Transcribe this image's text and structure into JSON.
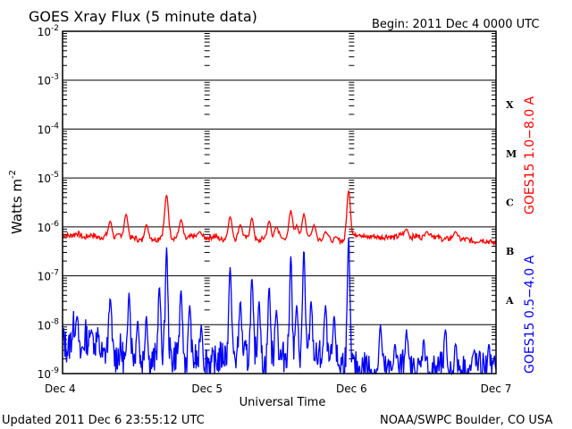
{
  "header": {
    "title": "GOES Xray Flux (5 minute data)",
    "begin": "Begin:  2011 Dec 4 0000 UTC"
  },
  "footer": {
    "updated": "Updated 2011 Dec  6 23:55:12 UTC",
    "credit": "NOAA/SWPC Boulder, CO USA"
  },
  "colors": {
    "long": "#ff0000",
    "short": "#0000ff",
    "axis": "#000000",
    "background": "#ffffff"
  },
  "chart_data": {
    "type": "line",
    "xlabel": "Universal Time",
    "ylabel": "Watts m",
    "ylabel_sup": "-2",
    "y_scale": "log",
    "ylim": [
      1e-09,
      0.01
    ],
    "y_ticks": [
      {
        "mant": "10",
        "exp": "-9",
        "value": 1e-09
      },
      {
        "mant": "10",
        "exp": "-8",
        "value": 1e-08
      },
      {
        "mant": "10",
        "exp": "-7",
        "value": 1e-07
      },
      {
        "mant": "10",
        "exp": "-6",
        "value": 1e-06
      },
      {
        "mant": "10",
        "exp": "-5",
        "value": 1e-05
      },
      {
        "mant": "10",
        "exp": "-4",
        "value": 0.0001
      },
      {
        "mant": "10",
        "exp": "-3",
        "value": 0.001
      },
      {
        "mant": "10",
        "exp": "-2",
        "value": 0.01
      }
    ],
    "x_ticks": [
      "Dec 4",
      "Dec 5",
      "Dec 6",
      "Dec 7"
    ],
    "flare_classes": [
      {
        "label": "X",
        "value": 0.000316
      },
      {
        "label": "M",
        "value": 3.16e-05
      },
      {
        "label": "C",
        "value": 3.16e-06
      },
      {
        "label": "B",
        "value": 3.16e-07
      },
      {
        "label": "A",
        "value": 3.16e-08
      }
    ],
    "grid": "horizontal at each decade",
    "series": [
      {
        "name": "GOES15 1.0−8.0 A",
        "color": "#ff0000",
        "points": [
          [
            0,
            7e-07
          ],
          [
            0.05,
            6.5e-07
          ],
          [
            0.1,
            7.5e-07
          ],
          [
            0.15,
            6e-07
          ],
          [
            0.2,
            7e-07
          ],
          [
            0.25,
            6e-07
          ],
          [
            0.3,
            6.5e-07
          ],
          [
            0.35,
            5.5e-07
          ],
          [
            0.4,
            7e-07
          ],
          [
            0.45,
            5.5e-07
          ],
          [
            0.5,
            6e-07
          ],
          [
            0.55,
            5e-07
          ],
          [
            0.6,
            6e-07
          ],
          [
            0.65,
            5.5e-07
          ],
          [
            0.7,
            7e-07
          ],
          [
            0.75,
            6e-07
          ],
          [
            0.8,
            6e-07
          ],
          [
            0.85,
            5.5e-07
          ],
          [
            0.9,
            6.5e-07
          ],
          [
            0.95,
            6e-07
          ],
          [
            1,
            6e-07
          ],
          [
            1.05,
            6.5e-07
          ],
          [
            1.1,
            5.5e-07
          ],
          [
            1.15,
            6e-07
          ],
          [
            1.2,
            5.5e-07
          ],
          [
            1.25,
            6e-07
          ],
          [
            1.3,
            5.5e-07
          ],
          [
            1.35,
            5e-07
          ],
          [
            1.4,
            6e-07
          ],
          [
            1.45,
            5.5e-07
          ],
          [
            1.5,
            6.5e-07
          ],
          [
            1.6,
            5.5e-07
          ],
          [
            1.7,
            6e-07
          ],
          [
            1.8,
            5.5e-07
          ],
          [
            1.9,
            5.5e-07
          ],
          [
            1.95,
            5e-07
          ],
          [
            2,
            6e-07
          ],
          [
            2.05,
            7.5e-07
          ],
          [
            2.1,
            6e-07
          ],
          [
            2.15,
            6.5e-07
          ],
          [
            2.2,
            6e-07
          ],
          [
            2.25,
            6.5e-07
          ],
          [
            2.3,
            6e-07
          ],
          [
            2.35,
            7e-07
          ],
          [
            2.4,
            6e-07
          ],
          [
            2.45,
            6.5e-07
          ],
          [
            2.5,
            6e-07
          ],
          [
            2.55,
            7e-07
          ],
          [
            2.6,
            6e-07
          ],
          [
            2.65,
            5.5e-07
          ],
          [
            2.7,
            6e-07
          ],
          [
            2.75,
            5.5e-07
          ],
          [
            2.8,
            5.5e-07
          ],
          [
            2.85,
            5e-07
          ],
          [
            2.9,
            5.5e-07
          ],
          [
            2.95,
            5e-07
          ],
          [
            3,
            4.5e-07
          ]
        ],
        "peaks": [
          [
            0.33,
            1.3e-06
          ],
          [
            0.44,
            1.8e-06
          ],
          [
            0.58,
            1.1e-06
          ],
          [
            0.72,
            4.5e-06
          ],
          [
            0.82,
            1.4e-06
          ],
          [
            0.95,
            8e-07
          ],
          [
            1.16,
            1.6e-06
          ],
          [
            1.23,
            1.1e-06
          ],
          [
            1.31,
            1.5e-06
          ],
          [
            1.43,
            1.3e-06
          ],
          [
            1.48,
            1e-06
          ],
          [
            1.58,
            2.2e-06
          ],
          [
            1.62,
            1.1e-06
          ],
          [
            1.67,
            1.9e-06
          ],
          [
            1.74,
            1.1e-06
          ],
          [
            1.82,
            8e-07
          ],
          [
            1.98,
            5.5e-06
          ],
          [
            2.38,
            9e-07
          ],
          [
            2.52,
            8e-07
          ],
          [
            2.72,
            8e-07
          ]
        ]
      },
      {
        "name": "GOES15 0.5−4.0 A",
        "color": "#0000ff",
        "points": [
          [
            0,
            5e-09
          ],
          [
            0.04,
            3e-09
          ],
          [
            0.08,
            1e-08
          ],
          [
            0.12,
            2e-09
          ],
          [
            0.16,
            6e-09
          ],
          [
            0.2,
            3e-09
          ],
          [
            0.24,
            5e-09
          ],
          [
            0.28,
            2e-09
          ],
          [
            0.32,
            4e-09
          ],
          [
            0.36,
            2e-09
          ],
          [
            0.4,
            3e-09
          ],
          [
            0.44,
            1.5e-09
          ],
          [
            0.48,
            3e-09
          ],
          [
            0.52,
            1.5e-09
          ],
          [
            0.56,
            2e-09
          ],
          [
            0.6,
            1.5e-09
          ],
          [
            0.64,
            2e-09
          ],
          [
            0.68,
            2.5e-09
          ],
          [
            0.72,
            3e-09
          ],
          [
            0.76,
            2e-09
          ],
          [
            0.8,
            3e-09
          ],
          [
            0.84,
            2e-09
          ],
          [
            0.88,
            1.5e-09
          ],
          [
            0.92,
            2e-09
          ],
          [
            0.96,
            1.5e-09
          ],
          [
            1,
            2e-09
          ],
          [
            1.04,
            1.5e-09
          ],
          [
            1.08,
            2e-09
          ],
          [
            1.12,
            2.5e-09
          ],
          [
            1.16,
            3e-09
          ],
          [
            1.2,
            2e-09
          ],
          [
            1.24,
            3e-09
          ],
          [
            1.28,
            2e-09
          ],
          [
            1.32,
            3e-09
          ],
          [
            1.36,
            2e-09
          ],
          [
            1.4,
            1.5e-09
          ],
          [
            1.44,
            2e-09
          ],
          [
            1.48,
            2.5e-09
          ],
          [
            1.52,
            2e-09
          ],
          [
            1.56,
            3e-09
          ],
          [
            1.6,
            2e-09
          ],
          [
            1.64,
            2.5e-09
          ],
          [
            1.68,
            2e-09
          ],
          [
            1.72,
            3e-09
          ],
          [
            1.76,
            2e-09
          ],
          [
            1.8,
            2.5e-09
          ],
          [
            1.84,
            1.5e-09
          ],
          [
            1.88,
            2e-09
          ],
          [
            1.92,
            1.5e-09
          ],
          [
            1.96,
            2e-09
          ],
          [
            2,
            1.5e-09
          ],
          [
            2.05,
            1.2e-09
          ],
          [
            2.1,
            1.5e-09
          ],
          [
            2.15,
            1.1e-09
          ],
          [
            2.2,
            1.3e-09
          ],
          [
            2.25,
            1.1e-09
          ],
          [
            2.3,
            1.2e-09
          ],
          [
            2.35,
            1.5e-09
          ],
          [
            2.4,
            1.2e-09
          ],
          [
            2.45,
            1.1e-09
          ],
          [
            2.5,
            1.4e-09
          ],
          [
            2.55,
            1.1e-09
          ],
          [
            2.6,
            1.3e-09
          ],
          [
            2.65,
            1.2e-09
          ],
          [
            2.7,
            1.1e-09
          ],
          [
            2.75,
            1.3e-09
          ],
          [
            2.8,
            1.1e-09
          ],
          [
            2.85,
            1.2e-09
          ],
          [
            2.9,
            1.4e-09
          ],
          [
            2.95,
            1.1e-09
          ],
          [
            3,
            1.2e-09
          ]
        ],
        "peaks": [
          [
            0.1,
            1.5e-08
          ],
          [
            0.2,
            8e-09
          ],
          [
            0.33,
            3.5e-08
          ],
          [
            0.46,
            4.5e-08
          ],
          [
            0.52,
            1.2e-08
          ],
          [
            0.58,
            1.5e-08
          ],
          [
            0.67,
            6e-08
          ],
          [
            0.72,
            3.8e-07
          ],
          [
            0.82,
            5e-08
          ],
          [
            0.88,
            2.5e-08
          ],
          [
            0.96,
            1e-08
          ],
          [
            1.16,
            1.5e-07
          ],
          [
            1.23,
            3e-08
          ],
          [
            1.31,
            9e-08
          ],
          [
            1.36,
            3e-08
          ],
          [
            1.43,
            6e-08
          ],
          [
            1.48,
            2e-08
          ],
          [
            1.58,
            2.5e-07
          ],
          [
            1.62,
            2.5e-08
          ],
          [
            1.67,
            3.5e-07
          ],
          [
            1.72,
            3e-08
          ],
          [
            1.82,
            2.5e-08
          ],
          [
            1.88,
            1.5e-08
          ],
          [
            1.98,
            6e-07
          ],
          [
            2.2,
            1e-08
          ],
          [
            2.3,
            4e-09
          ],
          [
            2.38,
            8e-09
          ],
          [
            2.5,
            5e-09
          ],
          [
            2.65,
            8e-09
          ],
          [
            2.72,
            4e-09
          ],
          [
            2.85,
            3e-09
          ],
          [
            2.95,
            4e-09
          ]
        ]
      }
    ]
  }
}
